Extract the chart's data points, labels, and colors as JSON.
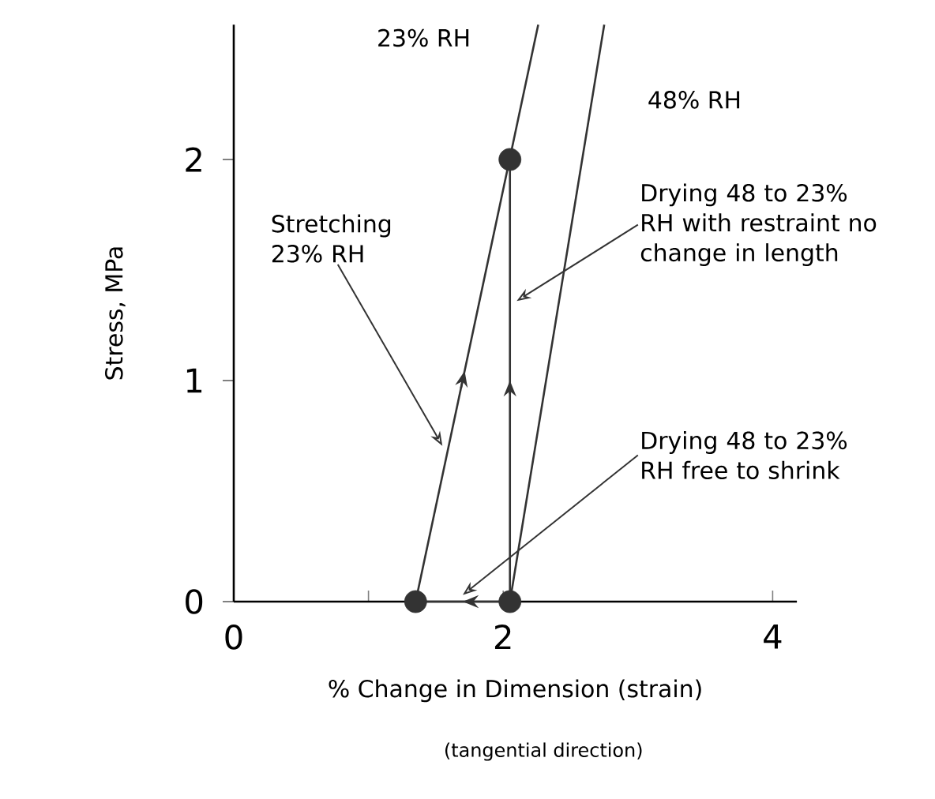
{
  "chart_data": {
    "type": "line",
    "xlabel": "% Change in Dimension (strain)",
    "ylabel": "Stress, MPa",
    "xlim": [
      0,
      4.18
    ],
    "ylim": [
      0,
      2.61
    ],
    "xticks": [
      0,
      {
        "value": 1,
        "label": null
      },
      2,
      4
    ],
    "yticks": [
      0,
      1,
      2
    ],
    "series": [
      {
        "name": "23% RH",
        "color": "#333333",
        "x": [
          1.35,
          2.26
        ],
        "values": [
          0,
          2.61
        ]
      },
      {
        "name": "48% RH",
        "color": "#333333",
        "x": [
          2.05,
          2.75
        ],
        "values": [
          0,
          2.61
        ]
      },
      {
        "color": "#333333",
        "x": [
          2.05,
          2.05
        ],
        "values": [
          0,
          2
        ]
      },
      {
        "color": "#333333",
        "x": [
          2.05,
          1.35
        ],
        "values": [
          0,
          0
        ]
      },
      {
        "type": "scatter",
        "color": "#333333",
        "marker": "circle",
        "x": [
          1.35,
          2.05,
          2.05
        ],
        "values": [
          0,
          0,
          2
        ]
      }
    ],
    "annotations": [
      "Stretching 23% RH",
      {
        "text": "Drying 48 to 23% RH with restraint no change in length",
        "x": 2.1,
        "y": 1.36
      },
      {
        "text": "Drying 48 to 23% RH free to shrink",
        "x": 1.7,
        "y": 0.03
      },
      "(tangential direction)"
    ]
  }
}
